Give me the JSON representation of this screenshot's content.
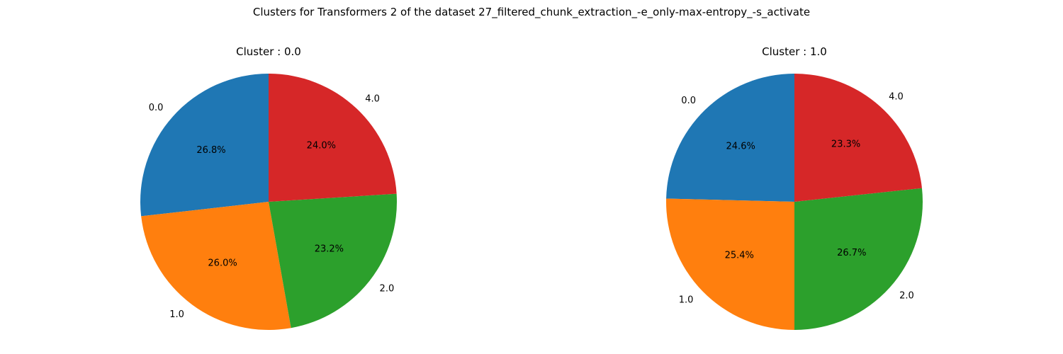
{
  "figure": {
    "title": "Clusters for Transformers 2 of the dataset 27_filtered_chunk_extraction_-e_only-max-entropy_-s_activate"
  },
  "chart_data": [
    {
      "type": "pie",
      "title": "Cluster : 0.0",
      "labels": [
        "0.0",
        "1.0",
        "2.0",
        "4.0"
      ],
      "values": [
        26.8,
        26.0,
        23.2,
        24.0
      ],
      "value_labels": [
        "26.8%",
        "26.0%",
        "23.2%",
        "24.0%"
      ],
      "colors": [
        "#1f77b4",
        "#ff7f0e",
        "#2ca02c",
        "#d62728"
      ],
      "start_angle_deg": 90,
      "direction": "counterclockwise",
      "legend": "none"
    },
    {
      "type": "pie",
      "title": "Cluster : 1.0",
      "labels": [
        "0.0",
        "1.0",
        "2.0",
        "4.0"
      ],
      "values": [
        24.6,
        25.4,
        26.7,
        23.3
      ],
      "value_labels": [
        "24.6%",
        "25.4%",
        "26.7%",
        "23.3%"
      ],
      "colors": [
        "#1f77b4",
        "#ff7f0e",
        "#2ca02c",
        "#d62728"
      ],
      "start_angle_deg": 90,
      "direction": "counterclockwise",
      "legend": "none"
    }
  ]
}
